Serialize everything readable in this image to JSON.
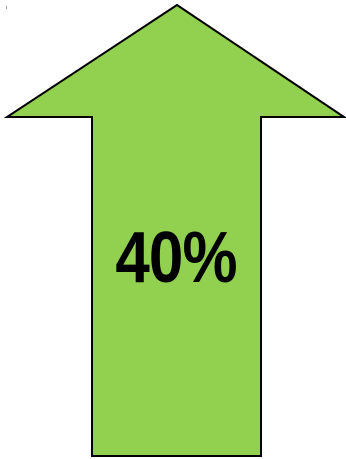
{
  "arrow": {
    "direction": "up",
    "value_label": "40%",
    "fill_color": "#92d050",
    "stroke_color": "#000000"
  }
}
